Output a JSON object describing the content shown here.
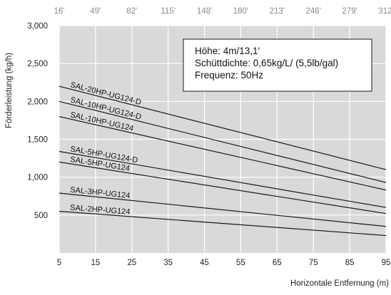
{
  "chart_data": {
    "type": "line",
    "xlabel": "Horizontale Entfernung (m)",
    "ylabel": "Förderleistung (kg/h)",
    "xlim": [
      5,
      95
    ],
    "ylim": [
      0,
      3000
    ],
    "x_ticks": [
      5,
      15,
      25,
      35,
      45,
      55,
      65,
      75,
      85,
      95
    ],
    "y_ticks": [
      {
        "value": 500,
        "label": "500"
      },
      {
        "value": 1000,
        "label": "1,000"
      },
      {
        "value": 1500,
        "label": "1,500"
      },
      {
        "value": 2000,
        "label": "2,000"
      },
      {
        "value": 2500,
        "label": "2,500"
      },
      {
        "value": 3000,
        "label": "3,000"
      }
    ],
    "secondary_x_ticks": [
      "16'",
      "49'",
      "82'",
      "115'",
      "148'",
      "180'",
      "213'",
      "246'",
      "279'",
      "312'"
    ],
    "grid": true,
    "info_box": [
      "Höhe: 4m/13,1'",
      "Schüttdichte: 0,65kg/L/ (5,5lb/gal)",
      "Frequenz: 50Hz"
    ],
    "series": [
      {
        "name": "SAL-20HP-UG124-D",
        "x": [
          5,
          95
        ],
        "y": [
          2200,
          1100
        ]
      },
      {
        "name": "SAL-10HP-UG124-D",
        "x": [
          5,
          95
        ],
        "y": [
          2000,
          930
        ]
      },
      {
        "name": "SAL-10HP-UG124",
        "x": [
          5,
          95
        ],
        "y": [
          1800,
          830
        ]
      },
      {
        "name": "SAL-5HP-UG124-D",
        "x": [
          5,
          95
        ],
        "y": [
          1340,
          600
        ]
      },
      {
        "name": "SAL-5HP-UG124",
        "x": [
          5,
          95
        ],
        "y": [
          1200,
          520
        ]
      },
      {
        "name": "SAL-3HP-UG124",
        "x": [
          5,
          95
        ],
        "y": [
          790,
          350
        ]
      },
      {
        "name": "SAL-2HP-UG124",
        "x": [
          5,
          95
        ],
        "y": [
          550,
          230
        ]
      }
    ],
    "colors": {
      "plot_bg": "#d9d9d9",
      "line": "#1a1a1a",
      "grid": "#ffffff"
    }
  }
}
